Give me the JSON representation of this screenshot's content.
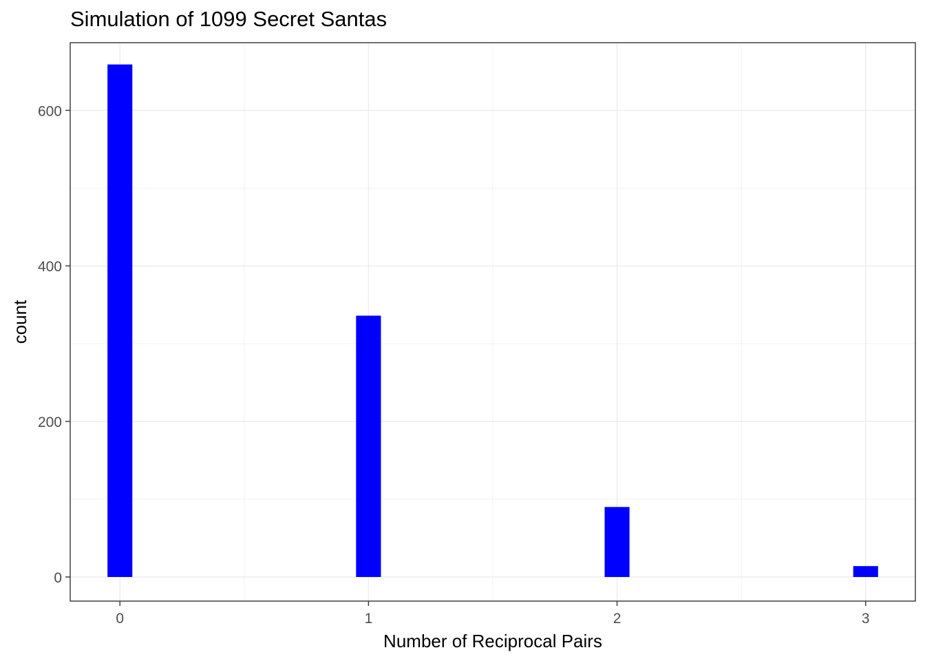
{
  "chart_data": {
    "type": "bar",
    "title": "Simulation of 1099 Secret Santas",
    "xlabel": "Number of Reciprocal Pairs",
    "ylabel": "count",
    "categories": [
      "0",
      "1",
      "2",
      "3"
    ],
    "x": [
      0,
      1,
      2,
      3
    ],
    "values": [
      659,
      336,
      90,
      14
    ],
    "xlim": [
      -0.2,
      3.2
    ],
    "ylim": [
      -31,
      687
    ],
    "x_ticks": [
      0,
      1,
      2,
      3
    ],
    "x_tick_labels": [
      "0",
      "1",
      "2",
      "3"
    ],
    "y_ticks": [
      0,
      200,
      400,
      600
    ],
    "y_tick_labels": [
      "0",
      "200",
      "400",
      "600"
    ],
    "bar_color": "#0000ff",
    "grid": true,
    "legend": "none"
  }
}
